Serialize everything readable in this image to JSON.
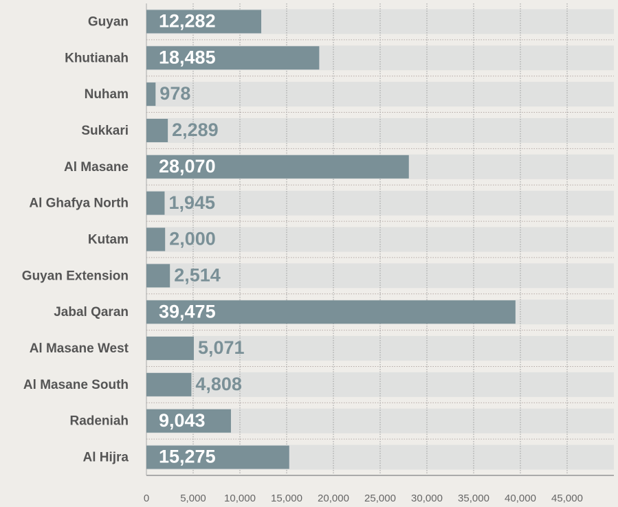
{
  "chart_data": {
    "type": "hbar",
    "categories": [
      "Guyan",
      "Khutianah",
      "Nuham",
      "Sukkari",
      "Al Masane",
      "Al Ghafya North",
      "Kutam",
      "Guyan Extension",
      "Jabal Qaran",
      "Al Masane West",
      "Al Masane South",
      "Radeniah",
      "Al Hijra"
    ],
    "values": [
      12282,
      18485,
      978,
      2289,
      28070,
      1945,
      2000,
      2514,
      39475,
      5071,
      4808,
      9043,
      15275
    ],
    "value_labels": [
      "12,282",
      "18,485",
      "978",
      "2,289",
      "28,070",
      "1,945",
      "2,000",
      "2,514",
      "39,475",
      "5,071",
      "4,808",
      "9,043",
      "15,275"
    ],
    "color": "#7a9097",
    "xlim": [
      0,
      50000
    ],
    "xticks": [
      0,
      {
        "value": 5000,
        "label": "5,000"
      },
      {
        "value": 10000,
        "label": "10,000"
      },
      {
        "value": 15000,
        "label": "15,000"
      },
      {
        "value": 20000,
        "label": "20,000"
      },
      {
        "value": 25000,
        "label": "25,000"
      },
      {
        "value": 30000,
        "label": "30,000"
      },
      {
        "value": 35000,
        "label": "35,000"
      },
      {
        "value": 40000,
        "label": "40,000"
      },
      {
        "value": 45000,
        "label": "45,000"
      }
    ],
    "grid": true
  }
}
